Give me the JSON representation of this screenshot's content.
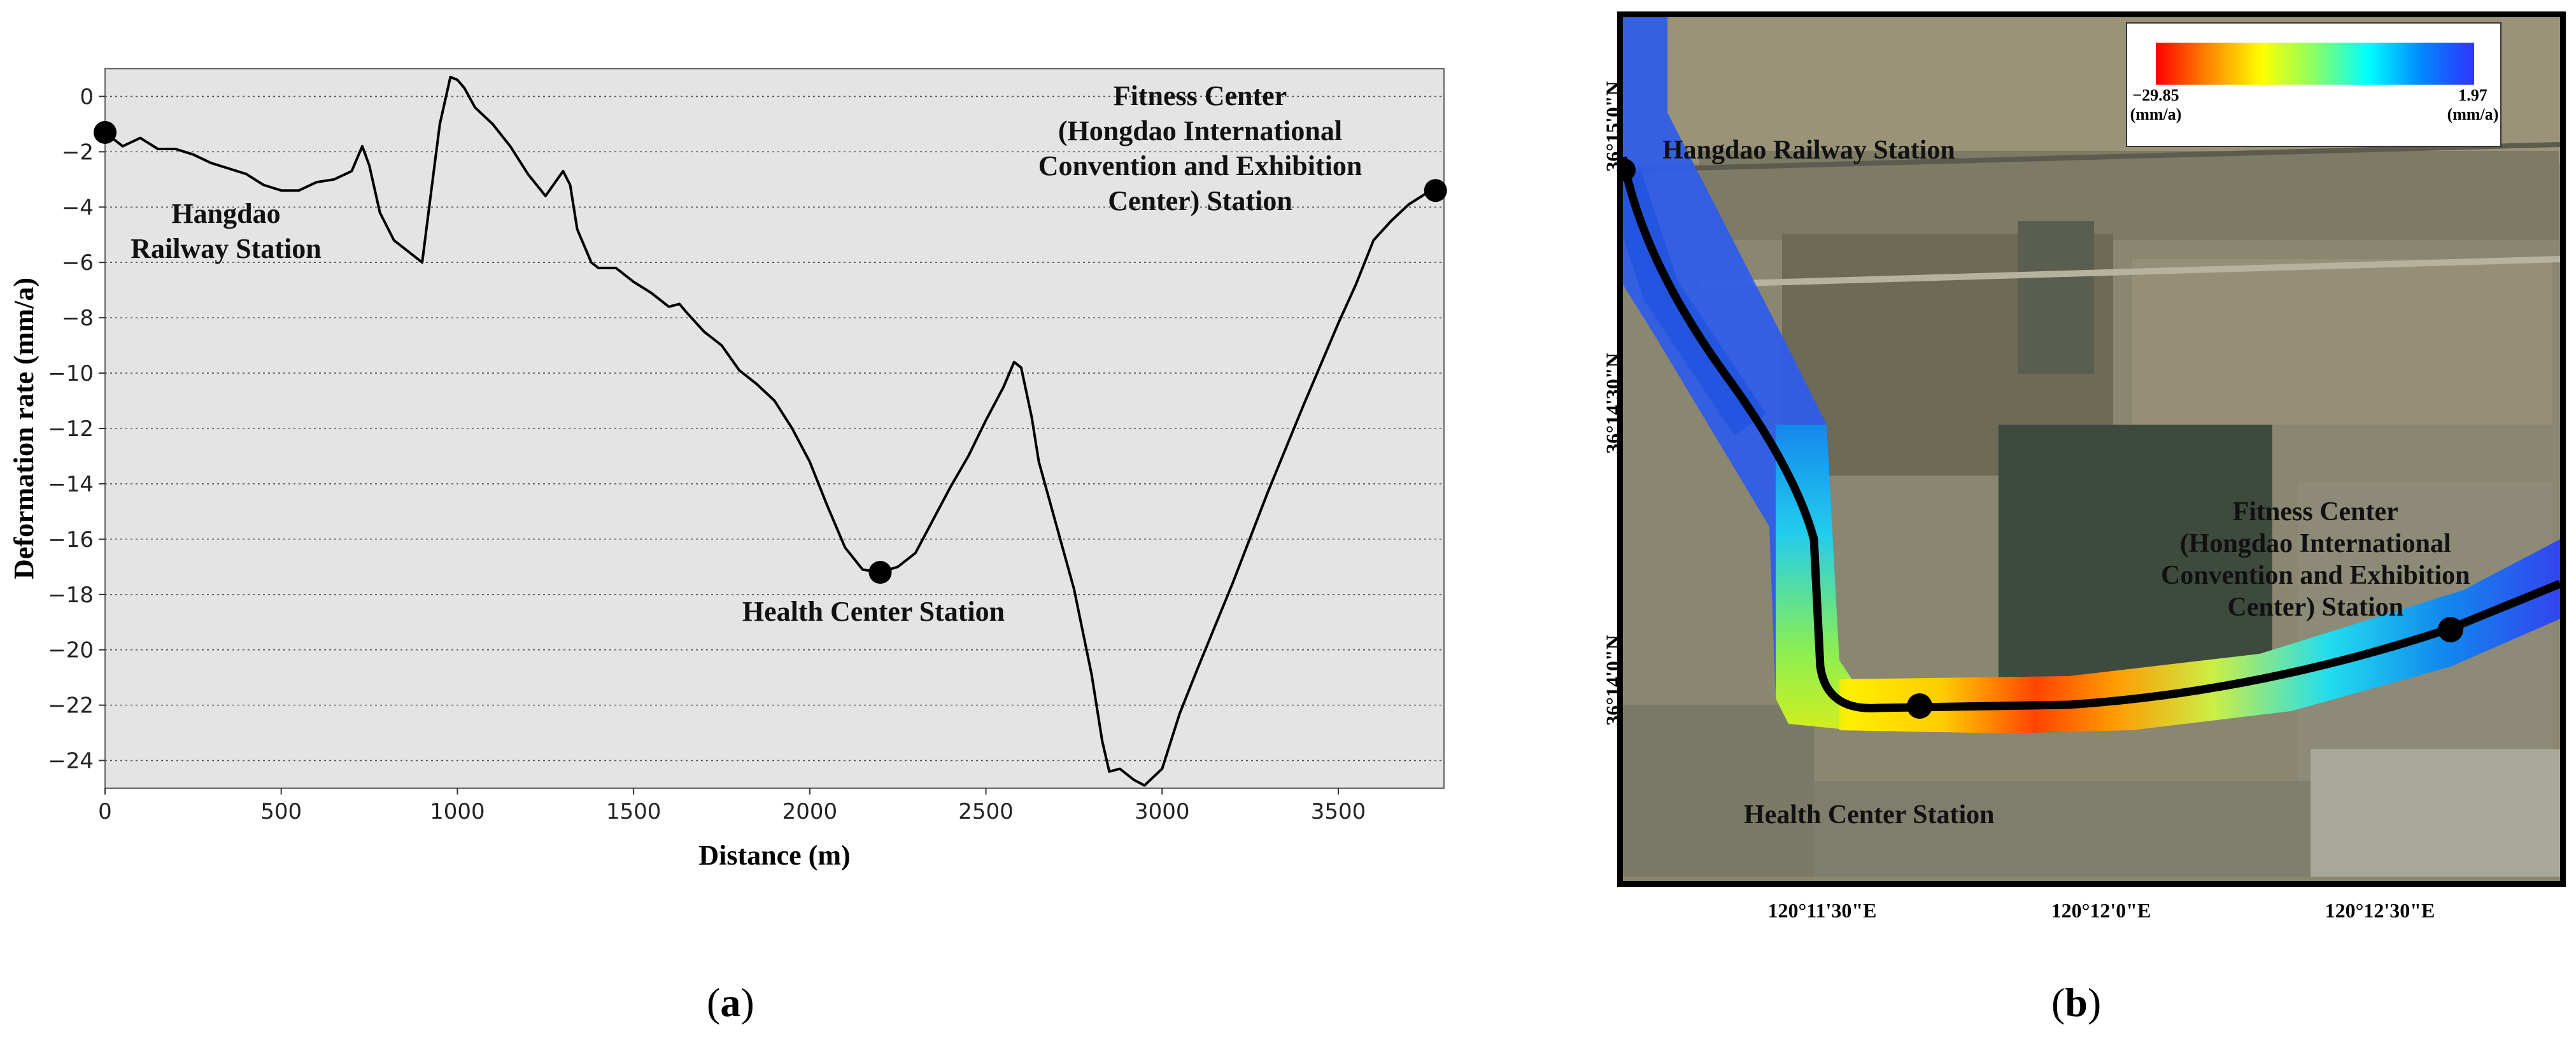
{
  "chart_data": [
    {
      "type": "line",
      "xlabel": "Distance (m)",
      "ylabel": "Deformation rate (mm/a)",
      "xlim": [
        0,
        3800
      ],
      "ylim": [
        -25,
        1
      ],
      "xticks": [
        0,
        500,
        1000,
        1500,
        2000,
        2500,
        3000,
        3500
      ],
      "yticks": [
        0,
        -2,
        -4,
        -6,
        -8,
        -10,
        -12,
        -14,
        -16,
        -18,
        -20,
        -22,
        -24
      ],
      "grid": "horizontal dotted",
      "background": "#e4e4e4",
      "series": [
        {
          "x": [
            0,
            50,
            100,
            150,
            200,
            250,
            300,
            350,
            400,
            450,
            500,
            550,
            600,
            650,
            700,
            730,
            750,
            780,
            820,
            860,
            900,
            920,
            950,
            980,
            1000,
            1020,
            1050,
            1100,
            1150,
            1200,
            1250,
            1300,
            1320,
            1340,
            1360,
            1380,
            1400,
            1450,
            1500,
            1550,
            1600,
            1630,
            1650,
            1700,
            1750,
            1800,
            1850,
            1900,
            1950,
            2000,
            2050,
            2100,
            2150,
            2200,
            2250,
            2300,
            2350,
            2400,
            2450,
            2500,
            2550,
            2580,
            2600,
            2630,
            2650,
            2700,
            2750,
            2800,
            2830,
            2850,
            2880,
            2900,
            2920,
            2950,
            3000,
            3050,
            3100,
            3200,
            3300,
            3400,
            3500,
            3550,
            3600,
            3650,
            3700,
            3750,
            3776
          ],
          "values": [
            -1.3,
            -1.8,
            -1.5,
            -1.9,
            -1.9,
            -2.1,
            -2.4,
            -2.6,
            -2.8,
            -3.2,
            -3.4,
            -3.4,
            -3.1,
            -3.0,
            -2.7,
            -1.8,
            -2.5,
            -4.2,
            -5.2,
            -5.6,
            -6.0,
            -4.0,
            -1.0,
            0.7,
            0.6,
            0.3,
            -0.4,
            -1.0,
            -1.8,
            -2.8,
            -3.6,
            -2.7,
            -3.2,
            -4.8,
            -5.4,
            -6.0,
            -6.2,
            -6.2,
            -6.7,
            -7.1,
            -7.6,
            -7.5,
            -7.8,
            -8.5,
            -9.0,
            -9.9,
            -10.4,
            -11.0,
            -12.0,
            -13.2,
            -14.8,
            -16.3,
            -17.1,
            -17.2,
            -17.0,
            -16.5,
            -15.3,
            -14.1,
            -13.0,
            -11.7,
            -10.5,
            -9.6,
            -9.8,
            -11.6,
            -13.2,
            -15.5,
            -17.8,
            -20.9,
            -23.3,
            -24.4,
            -24.3,
            -24.5,
            -24.7,
            -24.9,
            -24.3,
            -22.3,
            -20.7,
            -17.6,
            -14.3,
            -11.2,
            -8.2,
            -6.8,
            -5.2,
            -4.5,
            -3.9,
            -3.5,
            -3.4
          ]
        }
      ],
      "annotations": [
        {
          "text": "Hangdao Railway Station",
          "lines": [
            "Hangdao",
            "Railway Station"
          ],
          "x": 0,
          "y": -1.3
        },
        {
          "text": "Health Center Station",
          "lines": [
            "Health Center Station"
          ],
          "x": 2200,
          "y": -17.2
        },
        {
          "text": "Fitness Center (Hongdao International Convention and Exhibition Center) Station",
          "lines": [
            "Fitness Center",
            "(Hongdao International",
            "Convention and Exhibition",
            "Center) Station"
          ],
          "x": 3776,
          "y": -3.4
        }
      ]
    }
  ],
  "panels": {
    "a": "a",
    "b": "b"
  },
  "map": {
    "colorbar": {
      "min_label": "−29.85",
      "max_label": "1.97",
      "unit": "(mm/a)",
      "colors": [
        "#ff0000",
        "#ff8800",
        "#ffff00",
        "#88ff66",
        "#00ffff",
        "#0088ff",
        "#3333ff"
      ]
    },
    "lat_labels": [
      "36°15'0\"N",
      "36°14'30\"N",
      "36°14'0\"N"
    ],
    "lon_labels": [
      "120°11'30\"E",
      "120°12'0\"E",
      "120°12'30\"E"
    ],
    "stations": {
      "hangdao": "Hangdao Railway Station",
      "health": "Health Center Station",
      "fitness_lines": [
        "Fitness Center",
        "(Hongdao International",
        "Convention and Exhibition",
        "Center) Station"
      ]
    }
  }
}
